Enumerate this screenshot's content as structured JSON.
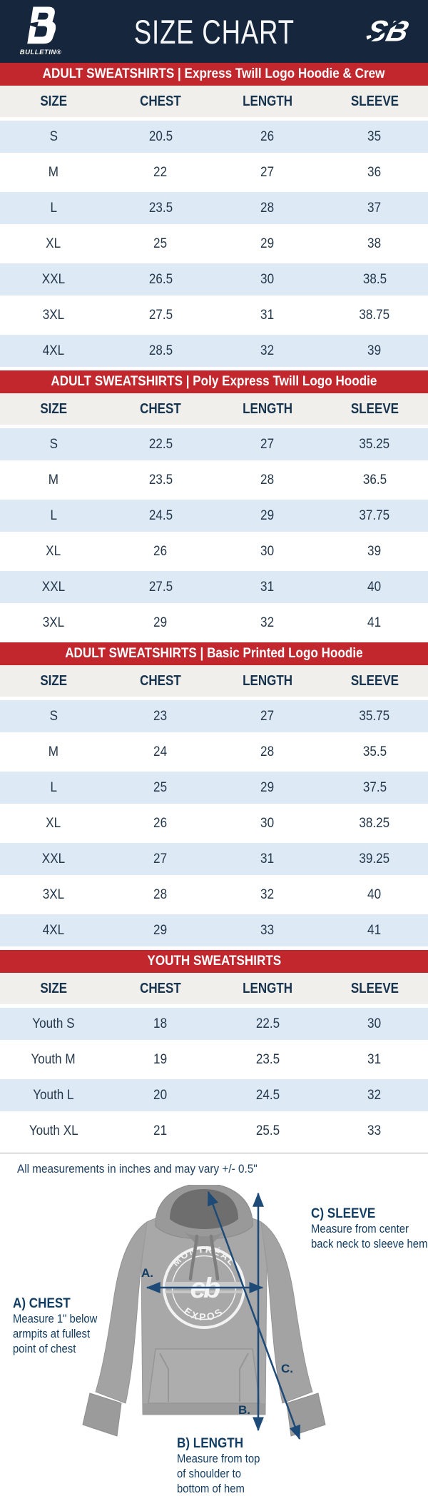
{
  "header": {
    "title": "SIZE CHART",
    "bulletin_wordmark": "BULLETIN®",
    "sb_monogram": "SB"
  },
  "sections": [
    {
      "banner": "ADULT SWEATSHIRTS | Express Twill Logo Hoodie & Crew",
      "columns": [
        "SIZE",
        "CHEST",
        "LENGTH",
        "SLEEVE"
      ],
      "rows": [
        [
          "S",
          "20.5",
          "26",
          "35"
        ],
        [
          "M",
          "22",
          "27",
          "36"
        ],
        [
          "L",
          "23.5",
          "28",
          "37"
        ],
        [
          "XL",
          "25",
          "29",
          "38"
        ],
        [
          "XXL",
          "26.5",
          "30",
          "38.5"
        ],
        [
          "3XL",
          "27.5",
          "31",
          "38.75"
        ],
        [
          "4XL",
          "28.5",
          "32",
          "39"
        ]
      ]
    },
    {
      "banner": "ADULT SWEATSHIRTS | Poly Express Twill Logo Hoodie",
      "columns": [
        "SIZE",
        "CHEST",
        "LENGTH",
        "SLEEVE"
      ],
      "rows": [
        [
          "S",
          "22.5",
          "27",
          "35.25"
        ],
        [
          "M",
          "23.5",
          "28",
          "36.5"
        ],
        [
          "L",
          "24.5",
          "29",
          "37.75"
        ],
        [
          "XL",
          "26",
          "30",
          "39"
        ],
        [
          "XXL",
          "27.5",
          "31",
          "40"
        ],
        [
          "3XL",
          "29",
          "32",
          "41"
        ]
      ]
    },
    {
      "banner": "ADULT SWEATSHIRTS | Basic Printed Logo Hoodie",
      "columns": [
        "SIZE",
        "CHEST",
        "LENGTH",
        "SLEEVE"
      ],
      "rows": [
        [
          "S",
          "23",
          "27",
          "35.75"
        ],
        [
          "M",
          "24",
          "28",
          "35.5"
        ],
        [
          "L",
          "25",
          "29",
          "37.5"
        ],
        [
          "XL",
          "26",
          "30",
          "38.25"
        ],
        [
          "XXL",
          "27",
          "31",
          "39.25"
        ],
        [
          "3XL",
          "28",
          "32",
          "40"
        ],
        [
          "4XL",
          "29",
          "33",
          "41"
        ]
      ]
    },
    {
      "banner": "YOUTH SWEATSHIRTS",
      "columns": [
        "SIZE",
        "CHEST",
        "LENGTH",
        "SLEEVE"
      ],
      "rows": [
        [
          "Youth S",
          "18",
          "22.5",
          "30"
        ],
        [
          "Youth M",
          "19",
          "23.5",
          "31"
        ],
        [
          "Youth L",
          "20",
          "24.5",
          "32"
        ],
        [
          "Youth XL",
          "21",
          "25.5",
          "33"
        ]
      ]
    }
  ],
  "note": "All measurements in inches and may vary +/- 0.5\"",
  "diagram": {
    "garment_logo": {
      "top": "MONTRÉAL",
      "bottom": "EXPOS",
      "center_glyph": "eb"
    },
    "chest": {
      "title": "A) CHEST",
      "line1": "Measure 1\" below",
      "line2": "armpits at fullest",
      "line3": "point of chest"
    },
    "length": {
      "title": "B) LENGTH",
      "line1": "Measure from top",
      "line2": "of shoulder to",
      "line3": "bottom of hem"
    },
    "sleeve": {
      "title": "C) SLEEVE",
      "line1": "Measure from center",
      "line2": "back neck to sleeve hem"
    },
    "markers": {
      "a": "A.",
      "b": "B.",
      "c": "C."
    }
  },
  "colors": {
    "header_navy": "#16263c",
    "banner_red": "#c1272d",
    "row_blue": "#dde9f5",
    "row_white": "#ffffff",
    "thead_gray": "#f1efec",
    "heading_text": "#17344f",
    "cell_text": "#25384c",
    "note_text": "#1d4063",
    "arrow_navy": "#1d4a77"
  }
}
